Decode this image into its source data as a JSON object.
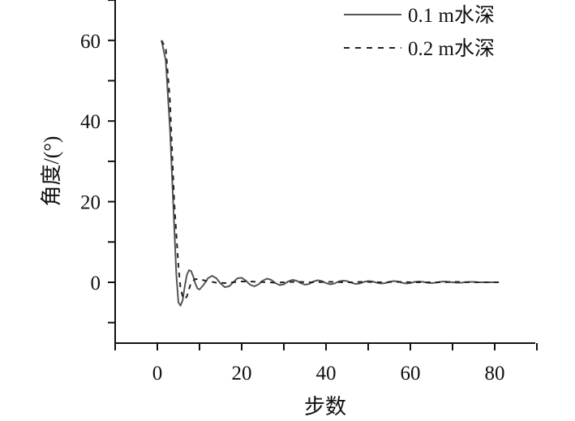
{
  "chart_data": {
    "type": "line",
    "xlabel": "步数",
    "ylabel": "角度/(°)",
    "xlim": [
      -10,
      90
    ],
    "ylim": [
      -15,
      70
    ],
    "xticks": [
      0,
      20,
      40,
      60,
      80
    ],
    "yticks": [
      0,
      20,
      40,
      60
    ],
    "grid": false,
    "legend_position": "top-right",
    "series": [
      {
        "name": "0.1 m水深",
        "style": "solid",
        "color": "#555555",
        "x": [
          1,
          2,
          3,
          4,
          4.5,
          5,
          5.5,
          6,
          6.5,
          7,
          7.5,
          8,
          8.5,
          9,
          9.5,
          10,
          11,
          12,
          13,
          14,
          15,
          16,
          17,
          18,
          19,
          20,
          21,
          22,
          23,
          24,
          25,
          26,
          27,
          28,
          29,
          30,
          31,
          32,
          33,
          34,
          35,
          36,
          37,
          38,
          39,
          40,
          41,
          42,
          43,
          44,
          45,
          46,
          47,
          48,
          49,
          50,
          51,
          52,
          53,
          54,
          55,
          56,
          57,
          58,
          59,
          60,
          61,
          62,
          63,
          64,
          65,
          66,
          67,
          68,
          69,
          70,
          71,
          72,
          73,
          74,
          75,
          76,
          77,
          78,
          79,
          80,
          81
        ],
        "y": [
          60,
          55,
          38,
          14,
          2,
          -5,
          -5.8,
          -4.5,
          -1,
          1.8,
          3,
          2.8,
          1.5,
          -0.3,
          -1.5,
          -1.8,
          -0.6,
          1,
          1.6,
          1,
          -0.3,
          -1.2,
          -1,
          0,
          1,
          1.1,
          0.4,
          -0.6,
          -1,
          -0.5,
          0.4,
          0.9,
          0.6,
          -0.2,
          -0.7,
          -0.5,
          0.2,
          0.6,
          0.4,
          -0.2,
          -0.6,
          -0.4,
          0.2,
          0.5,
          0.3,
          -0.2,
          -0.5,
          -0.3,
          0.2,
          0.4,
          0.3,
          -0.1,
          -0.4,
          -0.3,
          0.1,
          0.3,
          0.2,
          -0.1,
          -0.3,
          -0.2,
          0.1,
          0.3,
          0.2,
          -0.1,
          -0.3,
          -0.2,
          0.1,
          0.2,
          0.1,
          -0.1,
          -0.2,
          -0.1,
          0.1,
          0.2,
          0.1,
          0,
          -0.1,
          -0.1,
          0,
          0.1,
          0.1,
          0,
          0,
          0,
          0,
          0,
          0
        ]
      },
      {
        "name": "0.2 m水深",
        "style": "dashed",
        "color": "#222222",
        "x": [
          1,
          2,
          3,
          4,
          5,
          5.5,
          6,
          6.5,
          7,
          7.5,
          8,
          9,
          10,
          12,
          14,
          16,
          18,
          20,
          22,
          24,
          26,
          28,
          30,
          32,
          34,
          36,
          38,
          40,
          42,
          44,
          46,
          48,
          50,
          52,
          54,
          56,
          58,
          60,
          62,
          64,
          66,
          68,
          70,
          72,
          74,
          76,
          78,
          80,
          81
        ],
        "y": [
          60,
          58,
          45,
          20,
          4,
          -1.5,
          -3.5,
          -4.2,
          -3.5,
          -1.8,
          0,
          0.8,
          0.7,
          0.3,
          -0.1,
          -0.2,
          0,
          0.2,
          0.2,
          0.1,
          0,
          -0.1,
          0,
          0.1,
          0.1,
          0,
          0,
          0.1,
          0.1,
          0,
          0,
          0.1,
          0.1,
          0,
          0,
          0.1,
          0.1,
          0,
          0,
          0,
          0,
          0,
          0.1,
          0.1,
          0,
          0,
          0,
          0,
          0
        ]
      }
    ]
  }
}
